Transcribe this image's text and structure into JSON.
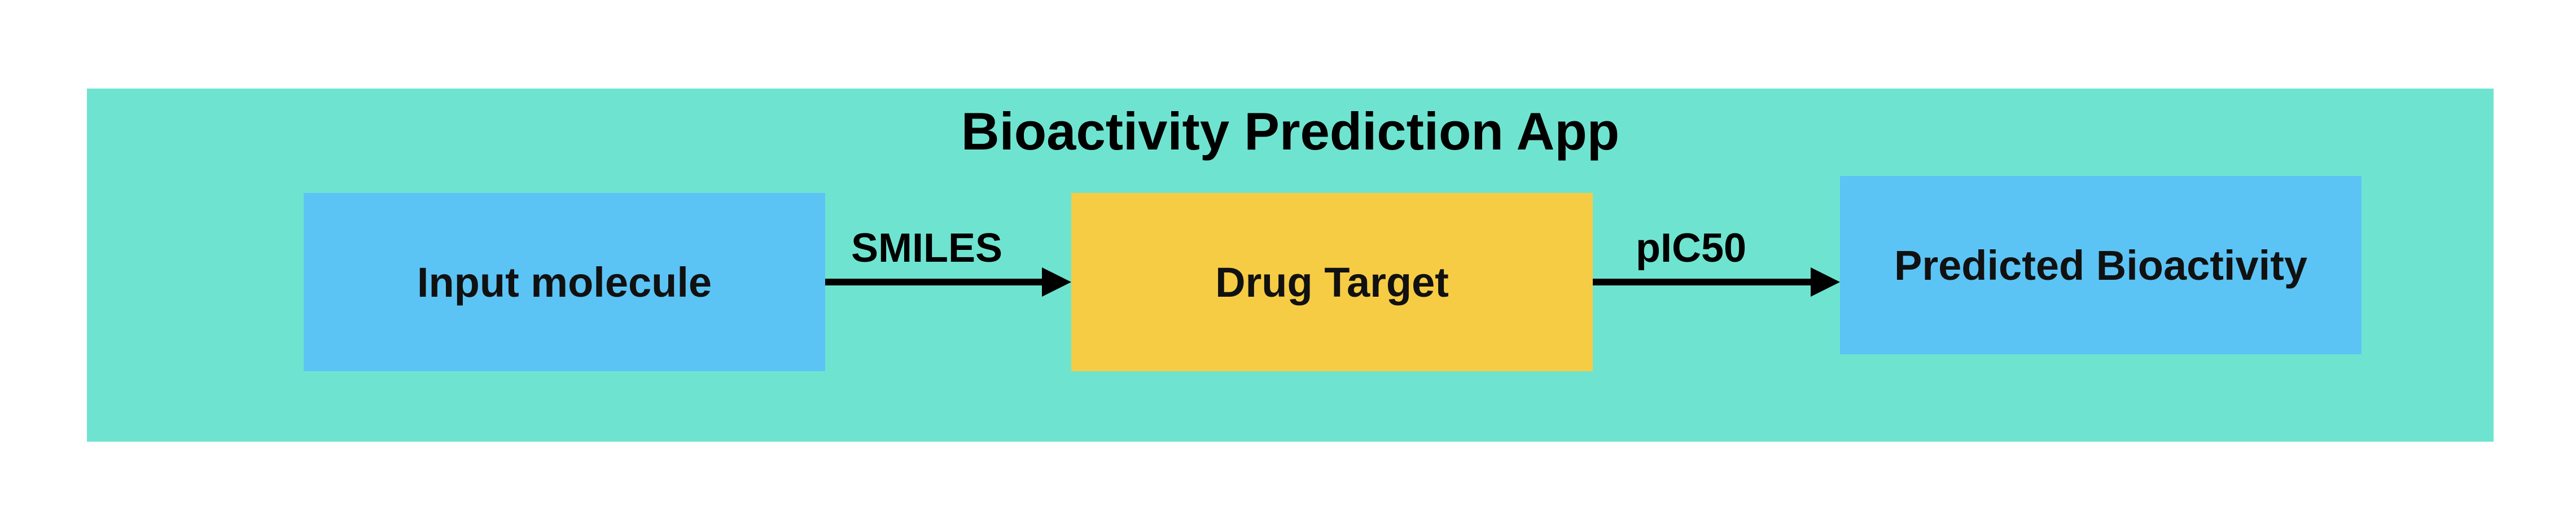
{
  "title": "Bioactivity Prediction App",
  "nodes": {
    "input": "Input molecule",
    "target": "Drug Target",
    "output": "Predicted Bioactivity"
  },
  "edges": {
    "input_to_target": "SMILES",
    "target_to_output": "pIC50"
  },
  "colors": {
    "panel": "#6ee4d0",
    "input_box": "#5bc4f5",
    "target_box": "#f6cc45",
    "output_box": "#5bc4f5",
    "arrow": "#000000"
  }
}
